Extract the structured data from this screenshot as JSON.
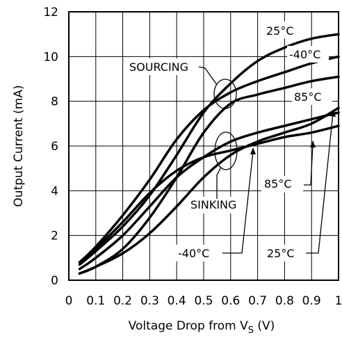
{
  "chart_data": {
    "type": "line",
    "xlabel": "Voltage Drop from V",
    "xlabel_sub": "S",
    "xlabel_suffix": " (V)",
    "ylabel": "Output Current (mA)",
    "xlim": [
      0,
      1
    ],
    "ylim": [
      0,
      12
    ],
    "grid": true,
    "x_ticks": [
      "0",
      "0.1",
      "0.2",
      "0.3",
      "0.4",
      "0.5",
      "0.6",
      "0.7",
      "0.8",
      "0.9",
      "1"
    ],
    "y_ticks": [
      "0",
      "2",
      "4",
      "6",
      "8",
      "10",
      "12"
    ],
    "group_labels": {
      "sourcing": "SOURCING",
      "sinking": "SINKING"
    },
    "series": [
      {
        "name": "25°C",
        "group": "sourcing",
        "x": [
          0.04,
          0.1,
          0.2,
          0.3,
          0.4,
          0.5,
          0.6,
          0.7,
          0.8,
          0.9,
          1.0
        ],
        "y": [
          0.7,
          1.3,
          2.4,
          3.8,
          5.6,
          7.5,
          8.8,
          9.8,
          10.4,
          10.8,
          11.0
        ]
      },
      {
        "name": "-40°C",
        "group": "sourcing",
        "x": [
          0.04,
          0.1,
          0.2,
          0.3,
          0.4,
          0.5,
          0.6,
          0.7,
          0.8,
          0.9,
          1.0
        ],
        "y": [
          0.8,
          1.5,
          2.9,
          4.5,
          6.3,
          7.6,
          8.4,
          8.9,
          9.3,
          9.7,
          10.0
        ]
      },
      {
        "name": "85°C",
        "group": "sourcing",
        "x": [
          0.04,
          0.1,
          0.2,
          0.3,
          0.4,
          0.5,
          0.6,
          0.7,
          0.8,
          0.9,
          1.0
        ],
        "y": [
          0.3,
          0.6,
          1.4,
          2.8,
          4.6,
          6.6,
          7.9,
          8.3,
          8.6,
          8.9,
          9.1
        ]
      },
      {
        "name": "-40°C",
        "group": "sinking",
        "x": [
          0.04,
          0.1,
          0.2,
          0.3,
          0.4,
          0.5,
          0.6,
          0.7,
          0.8,
          0.9,
          1.0
        ],
        "y": [
          0.8,
          1.4,
          2.6,
          3.9,
          4.9,
          5.5,
          5.8,
          6.1,
          6.4,
          6.6,
          6.9
        ]
      },
      {
        "name": "25°C",
        "group": "sinking",
        "x": [
          0.04,
          0.1,
          0.2,
          0.3,
          0.4,
          0.5,
          0.6,
          0.7,
          0.8,
          0.9,
          1.0
        ],
        "y": [
          0.5,
          1.0,
          2.0,
          3.3,
          4.6,
          5.5,
          6.2,
          6.6,
          6.9,
          7.2,
          7.5
        ]
      },
      {
        "name": "85°C",
        "group": "sinking",
        "x": [
          0.04,
          0.1,
          0.2,
          0.3,
          0.4,
          0.5,
          0.6,
          0.7,
          0.8,
          0.9,
          1.0
        ],
        "y": [
          0.3,
          0.6,
          1.2,
          2.1,
          3.3,
          4.6,
          5.6,
          6.2,
          6.6,
          7.0,
          7.7
        ]
      }
    ],
    "annotations": [
      "25°C",
      "-40°C",
      "85°C",
      "SOURCING",
      "SINKING",
      "85°C",
      "-40°C",
      "25°C"
    ]
  }
}
